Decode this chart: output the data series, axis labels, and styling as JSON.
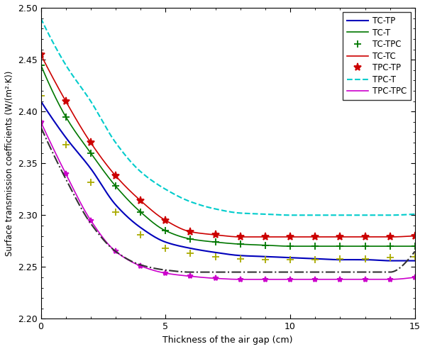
{
  "title": "",
  "xlabel": "Thickness of the air gap (cm)",
  "ylabel": "Surface transmission coefficients (W/(m²·K))",
  "xlim": [
    0,
    15
  ],
  "ylim": [
    2.2,
    2.5
  ],
  "x": [
    0,
    1,
    2,
    3,
    4,
    5,
    6,
    7,
    8,
    9,
    10,
    11,
    12,
    13,
    14,
    15
  ],
  "series": {
    "TC-TP": {
      "color": "#0000bb",
      "linestyle": "-",
      "marker": null,
      "values": [
        2.41,
        2.375,
        2.345,
        2.31,
        2.288,
        2.274,
        2.268,
        2.264,
        2.261,
        2.26,
        2.259,
        2.258,
        2.257,
        2.257,
        2.256,
        2.256
      ]
    },
    "TC-T": {
      "color": "#007700",
      "linestyle": "-",
      "marker": "+",
      "markersize": 7,
      "values": [
        2.445,
        2.395,
        2.36,
        2.328,
        2.303,
        2.285,
        2.277,
        2.274,
        2.272,
        2.271,
        2.27,
        2.27,
        2.27,
        2.27,
        2.27,
        2.27
      ]
    },
    "TC-TPC": {
      "color": "#cc0000",
      "linestyle": "-",
      "marker": "*",
      "markersize": 8,
      "values": [
        2.455,
        2.41,
        2.37,
        2.338,
        2.314,
        2.295,
        2.284,
        2.281,
        2.279,
        2.279,
        2.279,
        2.279,
        2.279,
        2.279,
        2.279,
        2.28
      ]
    },
    "TC-TC": {
      "color": "#00cccc",
      "linestyle": "--",
      "marker": null,
      "values": [
        2.49,
        2.445,
        2.41,
        2.37,
        2.342,
        2.325,
        2.313,
        2.306,
        2.302,
        2.301,
        2.3,
        2.3,
        2.3,
        2.3,
        2.3,
        2.301
      ]
    },
    "TPC-TP": {
      "color": "#cc00cc",
      "linestyle": "-",
      "marker": "*",
      "markersize": 6,
      "values": [
        2.39,
        2.34,
        2.295,
        2.265,
        2.251,
        2.244,
        2.241,
        2.239,
        2.238,
        2.238,
        2.238,
        2.238,
        2.238,
        2.238,
        2.238,
        2.24
      ]
    },
    "TPC-T": {
      "color": "#aaaa00",
      "linestyle": "none",
      "marker": "+",
      "markersize": 7,
      "values": [
        2.415,
        2.368,
        2.332,
        2.303,
        2.281,
        2.268,
        2.263,
        2.26,
        2.258,
        2.257,
        2.257,
        2.257,
        2.258,
        2.258,
        2.259,
        2.26
      ]
    },
    "TPC-TPC": {
      "color": "#333333",
      "linestyle": "-.",
      "marker": null,
      "values": [
        2.385,
        2.335,
        2.292,
        2.265,
        2.252,
        2.247,
        2.245,
        2.245,
        2.245,
        2.245,
        2.245,
        2.245,
        2.245,
        2.245,
        2.245,
        2.265
      ]
    }
  },
  "legend_order": [
    "TC-TP",
    "TC-T",
    "TC-TPC",
    "TC-TC",
    "TPC-TP",
    "TPC-T",
    "TPC-TPC"
  ],
  "figsize": [
    5.99,
    4.92
  ],
  "dpi": 100
}
